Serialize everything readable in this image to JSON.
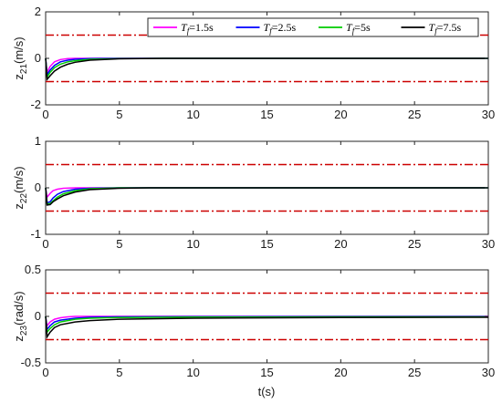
{
  "colors": {
    "Tf15": "#ff00ff",
    "Tf25": "#0000ff",
    "Tf5": "#00cc00",
    "Tf75": "#000000",
    "bound": "#cc0000"
  },
  "legend": [
    {
      "key": "Tf15",
      "label": "=1.5s"
    },
    {
      "key": "Tf25",
      "label": "=2.5s"
    },
    {
      "key": "Tf5",
      "label": "=5s"
    },
    {
      "key": "Tf75",
      "label": "=7.5s"
    }
  ],
  "legend_symbol": {
    "T": "T",
    "sub": "f"
  },
  "chart_data": [
    {
      "type": "line",
      "ylabel": {
        "main": "z",
        "sub": "21",
        "unit": "(m/s)"
      },
      "xlabel": "",
      "xlim": [
        0,
        30
      ],
      "ylim": [
        -2,
        2
      ],
      "xticks": [
        0,
        5,
        10,
        15,
        20,
        25,
        30
      ],
      "yticks": [
        -2,
        0,
        2
      ],
      "bounds": [
        1,
        -1
      ],
      "legend_position": "top-right",
      "series": [
        {
          "key": "Tf15",
          "x": [
            0,
            0.1,
            0.3,
            0.6,
            1,
            1.5,
            2,
            3,
            5,
            30
          ],
          "y": [
            0,
            -0.6,
            -0.35,
            -0.15,
            -0.05,
            -0.01,
            0,
            0,
            0,
            0
          ]
        },
        {
          "key": "Tf25",
          "x": [
            0,
            0.1,
            0.3,
            0.6,
            1,
            1.5,
            2,
            3,
            5,
            30
          ],
          "y": [
            0,
            -0.7,
            -0.5,
            -0.3,
            -0.15,
            -0.08,
            -0.04,
            -0.01,
            0,
            0
          ]
        },
        {
          "key": "Tf5",
          "x": [
            0,
            0.1,
            0.3,
            0.6,
            1,
            1.5,
            2,
            3,
            5,
            8,
            30
          ],
          "y": [
            0,
            -0.8,
            -0.6,
            -0.4,
            -0.25,
            -0.15,
            -0.1,
            -0.04,
            -0.01,
            0,
            0
          ]
        },
        {
          "key": "Tf75",
          "x": [
            0,
            0.1,
            0.3,
            0.6,
            1,
            1.5,
            2,
            3,
            5,
            8,
            30
          ],
          "y": [
            0,
            -0.9,
            -0.75,
            -0.55,
            -0.38,
            -0.25,
            -0.17,
            -0.08,
            -0.02,
            0,
            0
          ]
        }
      ]
    },
    {
      "type": "line",
      "ylabel": {
        "main": "z",
        "sub": "22",
        "unit": "(m/s)"
      },
      "xlabel": "",
      "xlim": [
        0,
        30
      ],
      "ylim": [
        -1,
        1
      ],
      "xticks": [
        0,
        5,
        10,
        15,
        20,
        25,
        30
      ],
      "yticks": [
        -1,
        0,
        1
      ],
      "bounds": [
        0.5,
        -0.5
      ],
      "series": [
        {
          "key": "Tf15",
          "x": [
            0,
            0.1,
            0.3,
            0.5,
            0.8,
            1.2,
            2,
            3,
            30
          ],
          "y": [
            0,
            -0.2,
            -0.12,
            -0.06,
            -0.03,
            -0.01,
            0,
            0,
            0
          ]
        },
        {
          "key": "Tf25",
          "x": [
            0,
            0.1,
            0.3,
            0.5,
            0.8,
            1.2,
            2,
            3,
            5,
            30
          ],
          "y": [
            0,
            -0.32,
            -0.3,
            -0.22,
            -0.14,
            -0.08,
            -0.03,
            -0.01,
            0,
            0
          ]
        },
        {
          "key": "Tf5",
          "x": [
            0,
            0.1,
            0.3,
            0.5,
            0.8,
            1.2,
            2,
            3,
            5,
            30
          ],
          "y": [
            0,
            -0.35,
            -0.34,
            -0.28,
            -0.2,
            -0.13,
            -0.06,
            -0.02,
            0,
            0
          ]
        },
        {
          "key": "Tf75",
          "x": [
            0,
            0.1,
            0.3,
            0.5,
            0.8,
            1.2,
            2,
            3,
            5,
            7,
            30
          ],
          "y": [
            0,
            -0.37,
            -0.36,
            -0.3,
            -0.24,
            -0.17,
            -0.09,
            -0.04,
            -0.01,
            0,
            0
          ]
        }
      ]
    },
    {
      "type": "line",
      "ylabel": {
        "main": "z",
        "sub": "23",
        "unit": "(rad/s)"
      },
      "xlabel": "t(s)",
      "xlim": [
        0,
        30
      ],
      "ylim": [
        -0.5,
        0.5
      ],
      "xticks": [
        0,
        5,
        10,
        15,
        20,
        25,
        30
      ],
      "yticks": [
        -0.5,
        0,
        0.5
      ],
      "bounds": [
        0.25,
        -0.25
      ],
      "series": [
        {
          "key": "Tf15",
          "x": [
            0,
            0.1,
            0.3,
            0.6,
            1,
            1.5,
            2,
            3,
            30
          ],
          "y": [
            0,
            -0.1,
            -0.06,
            -0.03,
            -0.015,
            -0.005,
            0,
            0,
            0
          ]
        },
        {
          "key": "Tf25",
          "x": [
            0,
            0.1,
            0.3,
            0.6,
            1,
            2,
            3,
            5,
            10,
            20,
            30
          ],
          "y": [
            0,
            -0.14,
            -0.1,
            -0.06,
            -0.04,
            -0.02,
            -0.01,
            -0.005,
            -0.003,
            -0.001,
            -0.001
          ]
        },
        {
          "key": "Tf5",
          "x": [
            0,
            0.1,
            0.3,
            0.6,
            1,
            2,
            3,
            5,
            10,
            20,
            30
          ],
          "y": [
            0,
            -0.17,
            -0.13,
            -0.09,
            -0.06,
            -0.03,
            -0.02,
            -0.012,
            -0.008,
            -0.005,
            -0.005
          ]
        },
        {
          "key": "Tf75",
          "x": [
            0,
            0.1,
            0.3,
            0.6,
            1,
            2,
            3,
            5,
            10,
            20,
            30
          ],
          "y": [
            0,
            -0.22,
            -0.17,
            -0.12,
            -0.09,
            -0.06,
            -0.045,
            -0.03,
            -0.02,
            -0.012,
            -0.01
          ]
        }
      ]
    }
  ]
}
